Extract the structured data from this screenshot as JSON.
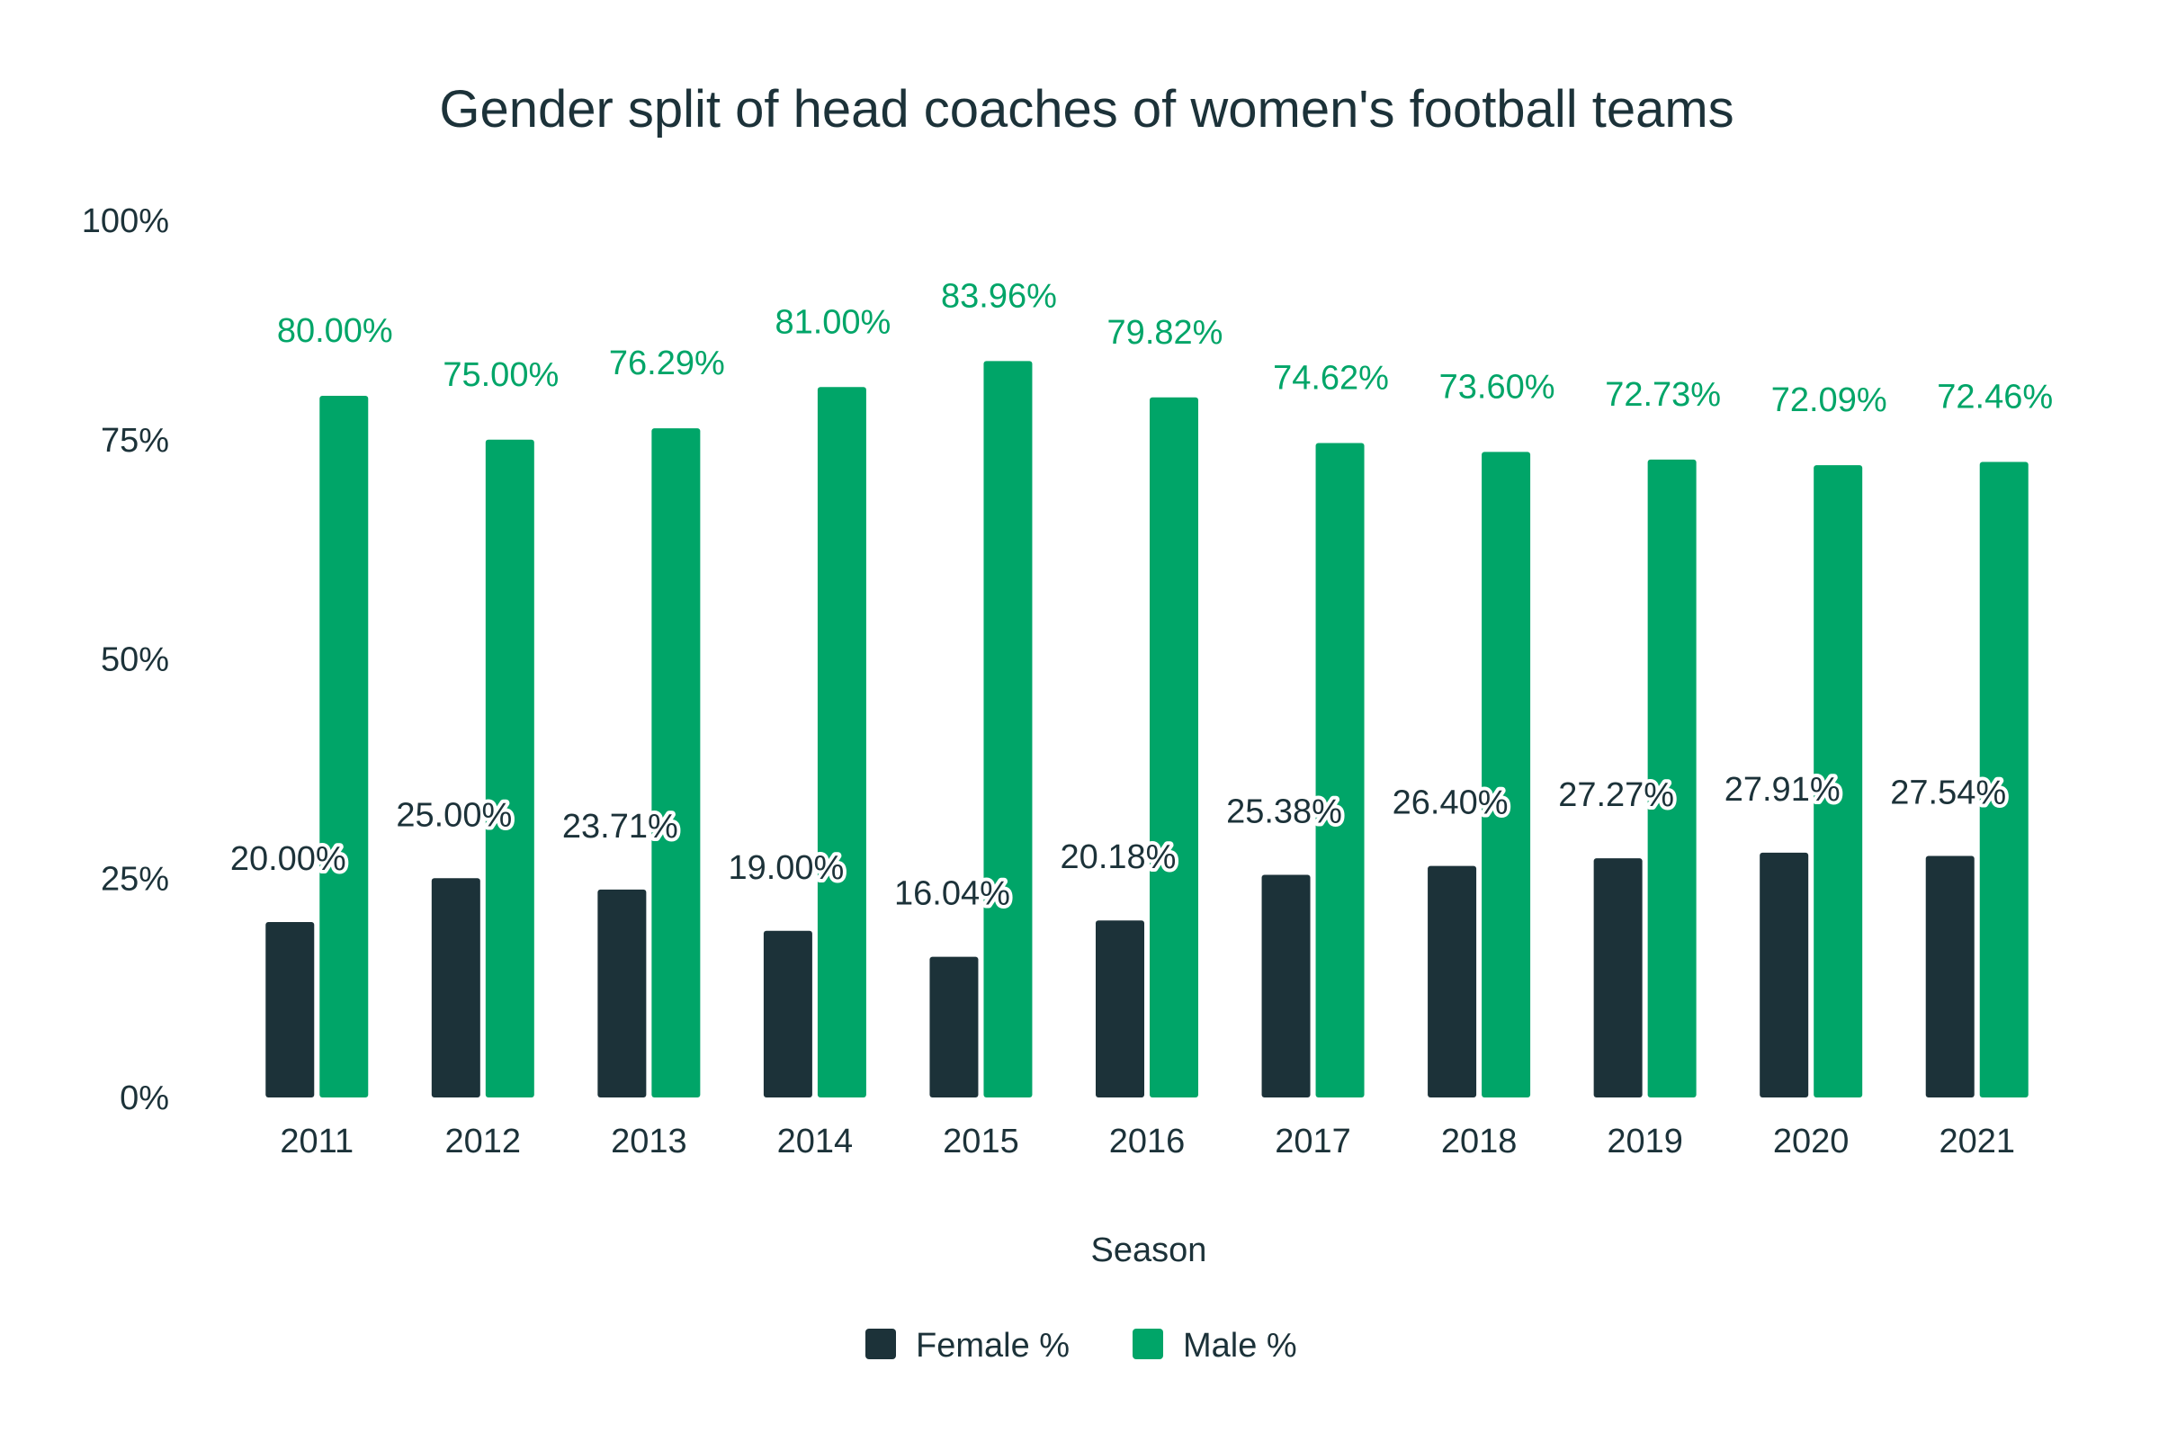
{
  "chart_data": {
    "type": "bar",
    "title": "Gender split of head coaches of women's football teams",
    "xlabel": "Season",
    "ylabel": "",
    "ylim": [
      0,
      100
    ],
    "yticks": [
      0,
      25,
      50,
      75,
      100
    ],
    "ytick_labels": [
      "0%",
      "25%",
      "50%",
      "75%",
      "100%"
    ],
    "grid": false,
    "legend_position": "bottom-center",
    "categories": [
      "2011",
      "2012",
      "2013",
      "2014",
      "2015",
      "2016",
      "2017",
      "2018",
      "2019",
      "2020",
      "2021"
    ],
    "series": [
      {
        "name": "Female %",
        "color": "#1c3239",
        "values": [
          20.0,
          25.0,
          23.71,
          19.0,
          16.04,
          20.18,
          25.38,
          26.4,
          27.27,
          27.91,
          27.54
        ],
        "labels": [
          "20.00%",
          "25.00%",
          "23.71%",
          "19.00%",
          "16.04%",
          "20.18%",
          "25.38%",
          "26.40%",
          "27.27%",
          "27.91%",
          "27.54%"
        ]
      },
      {
        "name": "Male %",
        "color": "#00a568",
        "values": [
          80.0,
          75.0,
          76.29,
          81.0,
          83.96,
          79.82,
          74.62,
          73.6,
          72.73,
          72.09,
          72.46
        ],
        "labels": [
          "80.00%",
          "75.00%",
          "76.29%",
          "81.00%",
          "83.96%",
          "79.82%",
          "74.62%",
          "73.60%",
          "72.73%",
          "72.09%",
          "72.46%"
        ]
      }
    ]
  }
}
